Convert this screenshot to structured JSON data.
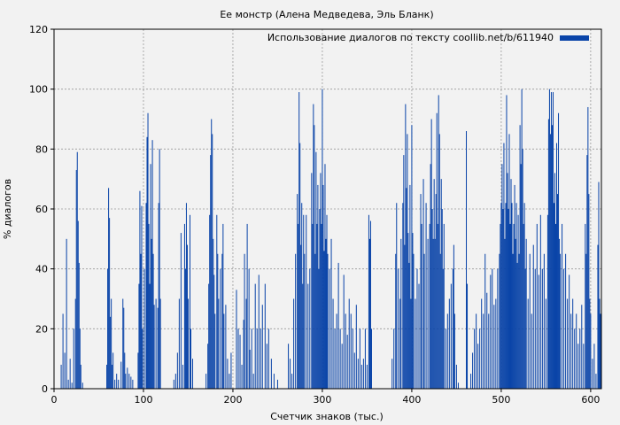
{
  "chart_data": {
    "type": "bar",
    "title": "Ее монстр (Алена Медведева, Эль Бланк)",
    "xlabel": "Счетчик знаков (тыс.)",
    "ylabel": "% диалогов",
    "xlim": [
      0,
      612
    ],
    "ylim": [
      0,
      120
    ],
    "xticks": [
      0,
      100,
      200,
      300,
      400,
      500,
      600
    ],
    "yticks": [
      0,
      20,
      40,
      60,
      80,
      100,
      120
    ],
    "grid": true,
    "legend_position": "top-right",
    "bar_color": "#0a44a8",
    "series": [
      {
        "name": "Использование диалогов по тексту coollib.net/b/611940",
        "points": [
          [
            8,
            8
          ],
          [
            10,
            25
          ],
          [
            12,
            12
          ],
          [
            14,
            50
          ],
          [
            16,
            3
          ],
          [
            18,
            10
          ],
          [
            20,
            2
          ],
          [
            22,
            20
          ],
          [
            24,
            30
          ],
          [
            25,
            73
          ],
          [
            26,
            79
          ],
          [
            27,
            56
          ],
          [
            28,
            42
          ],
          [
            29,
            20
          ],
          [
            30,
            8
          ],
          [
            32,
            2
          ],
          [
            59,
            8
          ],
          [
            60,
            40
          ],
          [
            61,
            67
          ],
          [
            62,
            57
          ],
          [
            63,
            24
          ],
          [
            64,
            30
          ],
          [
            65,
            8
          ],
          [
            66,
            12
          ],
          [
            68,
            3
          ],
          [
            70,
            5
          ],
          [
            72,
            3
          ],
          [
            75,
            9
          ],
          [
            77,
            30
          ],
          [
            78,
            27
          ],
          [
            79,
            12
          ],
          [
            80,
            5
          ],
          [
            82,
            7
          ],
          [
            84,
            5
          ],
          [
            86,
            4
          ],
          [
            88,
            3
          ],
          [
            94,
            12
          ],
          [
            95,
            35
          ],
          [
            96,
            66
          ],
          [
            97,
            45
          ],
          [
            98,
            61
          ],
          [
            99,
            20
          ],
          [
            101,
            40
          ],
          [
            103,
            62
          ],
          [
            104,
            84
          ],
          [
            105,
            92
          ],
          [
            106,
            55
          ],
          [
            107,
            35
          ],
          [
            108,
            75
          ],
          [
            109,
            50
          ],
          [
            110,
            83
          ],
          [
            111,
            45
          ],
          [
            112,
            28
          ],
          [
            114,
            30
          ],
          [
            116,
            27
          ],
          [
            117,
            62
          ],
          [
            118,
            80
          ],
          [
            119,
            30
          ],
          [
            134,
            3
          ],
          [
            136,
            5
          ],
          [
            138,
            12
          ],
          [
            140,
            30
          ],
          [
            142,
            52
          ],
          [
            144,
            8
          ],
          [
            146,
            55
          ],
          [
            147,
            40
          ],
          [
            148,
            62
          ],
          [
            149,
            48
          ],
          [
            150,
            30
          ],
          [
            152,
            58
          ],
          [
            153,
            20
          ],
          [
            155,
            10
          ],
          [
            170,
            5
          ],
          [
            172,
            15
          ],
          [
            173,
            35
          ],
          [
            174,
            58
          ],
          [
            175,
            78
          ],
          [
            176,
            90
          ],
          [
            177,
            85
          ],
          [
            178,
            50
          ],
          [
            179,
            38
          ],
          [
            180,
            25
          ],
          [
            182,
            58
          ],
          [
            183,
            45
          ],
          [
            184,
            30
          ],
          [
            186,
            40
          ],
          [
            188,
            45
          ],
          [
            189,
            55
          ],
          [
            190,
            25
          ],
          [
            192,
            28
          ],
          [
            194,
            10
          ],
          [
            196,
            5
          ],
          [
            198,
            12
          ],
          [
            204,
            33
          ],
          [
            206,
            20
          ],
          [
            208,
            18
          ],
          [
            210,
            8
          ],
          [
            212,
            23
          ],
          [
            213,
            45
          ],
          [
            215,
            30
          ],
          [
            216,
            55
          ],
          [
            218,
            40
          ],
          [
            219,
            13
          ],
          [
            221,
            20
          ],
          [
            223,
            5
          ],
          [
            225,
            35
          ],
          [
            227,
            20
          ],
          [
            229,
            38
          ],
          [
            231,
            20
          ],
          [
            233,
            28
          ],
          [
            236,
            35
          ],
          [
            238,
            15
          ],
          [
            240,
            20
          ],
          [
            243,
            10
          ],
          [
            246,
            5
          ],
          [
            250,
            3
          ],
          [
            262,
            15
          ],
          [
            264,
            10
          ],
          [
            266,
            5
          ],
          [
            268,
            30
          ],
          [
            270,
            45
          ],
          [
            272,
            65
          ],
          [
            273,
            55
          ],
          [
            274,
            99
          ],
          [
            275,
            82
          ],
          [
            276,
            48
          ],
          [
            277,
            62
          ],
          [
            278,
            35
          ],
          [
            279,
            58
          ],
          [
            280,
            45
          ],
          [
            282,
            58
          ],
          [
            284,
            35
          ],
          [
            286,
            40
          ],
          [
            288,
            72
          ],
          [
            289,
            55
          ],
          [
            290,
            95
          ],
          [
            291,
            88
          ],
          [
            292,
            45
          ],
          [
            293,
            79
          ],
          [
            294,
            55
          ],
          [
            295,
            68
          ],
          [
            296,
            40
          ],
          [
            297,
            60
          ],
          [
            298,
            72
          ],
          [
            299,
            55
          ],
          [
            300,
            100
          ],
          [
            301,
            68
          ],
          [
            302,
            46
          ],
          [
            303,
            75
          ],
          [
            304,
            50
          ],
          [
            305,
            58
          ],
          [
            306,
            45
          ],
          [
            308,
            40
          ],
          [
            310,
            50
          ],
          [
            312,
            30
          ],
          [
            314,
            20
          ],
          [
            316,
            25
          ],
          [
            318,
            42
          ],
          [
            320,
            20
          ],
          [
            322,
            15
          ],
          [
            324,
            38
          ],
          [
            326,
            25
          ],
          [
            328,
            18
          ],
          [
            330,
            30
          ],
          [
            332,
            25
          ],
          [
            334,
            20
          ],
          [
            336,
            12
          ],
          [
            338,
            28
          ],
          [
            340,
            10
          ],
          [
            342,
            20
          ],
          [
            344,
            8
          ],
          [
            346,
            10
          ],
          [
            348,
            20
          ],
          [
            350,
            8
          ],
          [
            352,
            58
          ],
          [
            353,
            50
          ],
          [
            354,
            56
          ],
          [
            355,
            20
          ],
          [
            378,
            10
          ],
          [
            380,
            20
          ],
          [
            382,
            45
          ],
          [
            383,
            62
          ],
          [
            385,
            40
          ],
          [
            387,
            30
          ],
          [
            388,
            50
          ],
          [
            390,
            62
          ],
          [
            391,
            78
          ],
          [
            392,
            48
          ],
          [
            393,
            95
          ],
          [
            394,
            67
          ],
          [
            395,
            85
          ],
          [
            396,
            52
          ],
          [
            397,
            42
          ],
          [
            398,
            68
          ],
          [
            399,
            30
          ],
          [
            400,
            88
          ],
          [
            401,
            52
          ],
          [
            402,
            45
          ],
          [
            404,
            30
          ],
          [
            406,
            40
          ],
          [
            408,
            35
          ],
          [
            410,
            65
          ],
          [
            411,
            55
          ],
          [
            413,
            70
          ],
          [
            414,
            45
          ],
          [
            416,
            62
          ],
          [
            418,
            50
          ],
          [
            420,
            55
          ],
          [
            421,
            75
          ],
          [
            422,
            90
          ],
          [
            423,
            60
          ],
          [
            424,
            50
          ],
          [
            425,
            70
          ],
          [
            426,
            50
          ],
          [
            427,
            65
          ],
          [
            428,
            92
          ],
          [
            429,
            55
          ],
          [
            430,
            98
          ],
          [
            431,
            85
          ],
          [
            432,
            45
          ],
          [
            433,
            70
          ],
          [
            434,
            60
          ],
          [
            435,
            40
          ],
          [
            436,
            55
          ],
          [
            438,
            20
          ],
          [
            440,
            25
          ],
          [
            442,
            30
          ],
          [
            444,
            35
          ],
          [
            446,
            40
          ],
          [
            447,
            48
          ],
          [
            448,
            25
          ],
          [
            450,
            8
          ],
          [
            452,
            2
          ],
          [
            461,
            86
          ],
          [
            462,
            35
          ],
          [
            466,
            5
          ],
          [
            468,
            12
          ],
          [
            470,
            20
          ],
          [
            472,
            25
          ],
          [
            474,
            15
          ],
          [
            476,
            20
          ],
          [
            478,
            30
          ],
          [
            480,
            25
          ],
          [
            482,
            45
          ],
          [
            484,
            32
          ],
          [
            486,
            25
          ],
          [
            488,
            38
          ],
          [
            490,
            40
          ],
          [
            492,
            28
          ],
          [
            494,
            30
          ],
          [
            496,
            40
          ],
          [
            498,
            45
          ],
          [
            499,
            55
          ],
          [
            500,
            62
          ],
          [
            501,
            75
          ],
          [
            502,
            60
          ],
          [
            503,
            82
          ],
          [
            504,
            50
          ],
          [
            505,
            62
          ],
          [
            506,
            98
          ],
          [
            507,
            72
          ],
          [
            508,
            60
          ],
          [
            509,
            85
          ],
          [
            510,
            55
          ],
          [
            511,
            70
          ],
          [
            512,
            62
          ],
          [
            513,
            45
          ],
          [
            514,
            55
          ],
          [
            515,
            68
          ],
          [
            516,
            50
          ],
          [
            517,
            62
          ],
          [
            518,
            42
          ],
          [
            519,
            58
          ],
          [
            520,
            45
          ],
          [
            521,
            88
          ],
          [
            522,
            75
          ],
          [
            523,
            100
          ],
          [
            524,
            80
          ],
          [
            525,
            55
          ],
          [
            526,
            62
          ],
          [
            527,
            40
          ],
          [
            528,
            50
          ],
          [
            530,
            30
          ],
          [
            532,
            45
          ],
          [
            534,
            25
          ],
          [
            536,
            48
          ],
          [
            538,
            40
          ],
          [
            540,
            55
          ],
          [
            542,
            38
          ],
          [
            544,
            58
          ],
          [
            546,
            40
          ],
          [
            548,
            45
          ],
          [
            550,
            30
          ],
          [
            552,
            58
          ],
          [
            553,
            90
          ],
          [
            554,
            100
          ],
          [
            555,
            85
          ],
          [
            556,
            99
          ],
          [
            557,
            88
          ],
          [
            558,
            99
          ],
          [
            559,
            62
          ],
          [
            560,
            72
          ],
          [
            561,
            55
          ],
          [
            562,
            82
          ],
          [
            563,
            65
          ],
          [
            564,
            92
          ],
          [
            565,
            50
          ],
          [
            566,
            45
          ],
          [
            568,
            55
          ],
          [
            570,
            40
          ],
          [
            572,
            45
          ],
          [
            574,
            30
          ],
          [
            576,
            38
          ],
          [
            578,
            25
          ],
          [
            580,
            30
          ],
          [
            582,
            20
          ],
          [
            584,
            25
          ],
          [
            586,
            15
          ],
          [
            588,
            20
          ],
          [
            590,
            28
          ],
          [
            592,
            15
          ],
          [
            594,
            55
          ],
          [
            595,
            45
          ],
          [
            596,
            78
          ],
          [
            597,
            94
          ],
          [
            598,
            65
          ],
          [
            599,
            30
          ],
          [
            600,
            25
          ],
          [
            602,
            10
          ],
          [
            604,
            15
          ],
          [
            606,
            5
          ],
          [
            608,
            48
          ],
          [
            609,
            69
          ],
          [
            610,
            30
          ],
          [
            611,
            25
          ]
        ]
      }
    ]
  }
}
